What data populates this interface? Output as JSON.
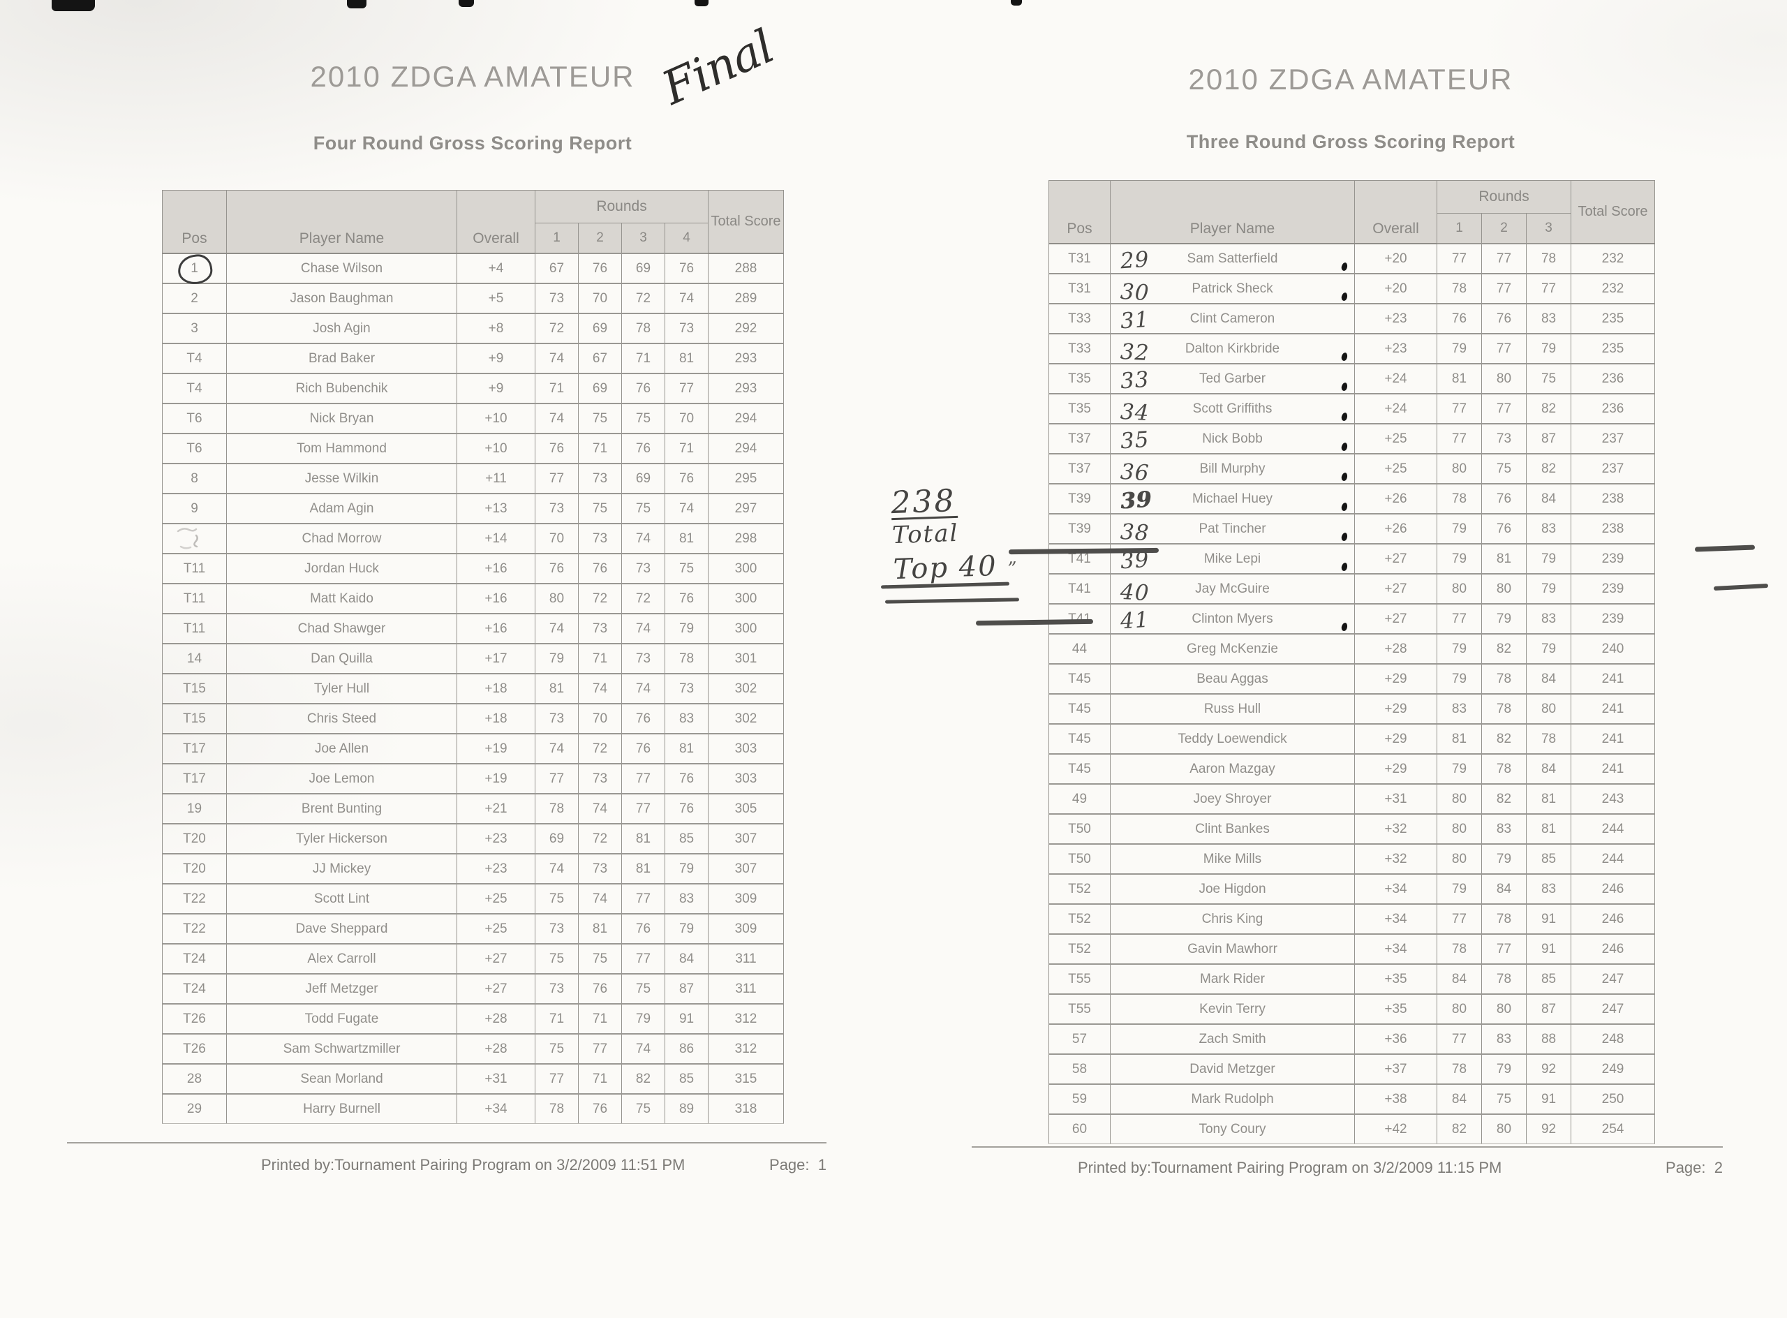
{
  "page1": {
    "title": "2010 ZDGA AMATEUR",
    "subtitle": "Four Round Gross Scoring Report",
    "handwritten_final": "Final",
    "columns": {
      "pos": "Pos",
      "player": "Player Name",
      "overall": "Overall",
      "rounds": "Rounds",
      "round_numbers": [
        "1",
        "2",
        "3",
        "4"
      ],
      "total": "Total Score"
    },
    "rows": [
      {
        "pos": "1",
        "name": "Chase Wilson",
        "overall": "+4",
        "r": [
          "67",
          "76",
          "69",
          "76"
        ],
        "total": "288",
        "circled": true
      },
      {
        "pos": "2",
        "name": "Jason Baughman",
        "overall": "+5",
        "r": [
          "73",
          "70",
          "72",
          "74"
        ],
        "total": "289"
      },
      {
        "pos": "3",
        "name": "Josh Agin",
        "overall": "+8",
        "r": [
          "72",
          "69",
          "78",
          "73"
        ],
        "total": "292"
      },
      {
        "pos": "T4",
        "name": "Brad Baker",
        "overall": "+9",
        "r": [
          "74",
          "67",
          "71",
          "81"
        ],
        "total": "293"
      },
      {
        "pos": "T4",
        "name": "Rich Bubenchik",
        "overall": "+9",
        "r": [
          "71",
          "69",
          "76",
          "77"
        ],
        "total": "293"
      },
      {
        "pos": "T6",
        "name": "Nick Bryan",
        "overall": "+10",
        "r": [
          "74",
          "75",
          "75",
          "70"
        ],
        "total": "294"
      },
      {
        "pos": "T6",
        "name": "Tom Hammond",
        "overall": "+10",
        "r": [
          "76",
          "71",
          "76",
          "71"
        ],
        "total": "294"
      },
      {
        "pos": "8",
        "name": "Jesse Wilkin",
        "overall": "+11",
        "r": [
          "77",
          "73",
          "69",
          "76"
        ],
        "total": "295"
      },
      {
        "pos": "9",
        "name": "Adam Agin",
        "overall": "+13",
        "r": [
          "73",
          "75",
          "75",
          "74"
        ],
        "total": "297"
      },
      {
        "pos": "",
        "name": "Chad Morrow",
        "overall": "+14",
        "r": [
          "70",
          "73",
          "74",
          "81"
        ],
        "total": "298",
        "smudge": true
      },
      {
        "pos": "T11",
        "name": "Jordan Huck",
        "overall": "+16",
        "r": [
          "76",
          "76",
          "73",
          "75"
        ],
        "total": "300"
      },
      {
        "pos": "T11",
        "name": "Matt Kaido",
        "overall": "+16",
        "r": [
          "80",
          "72",
          "72",
          "76"
        ],
        "total": "300"
      },
      {
        "pos": "T11",
        "name": "Chad Shawger",
        "overall": "+16",
        "r": [
          "74",
          "73",
          "74",
          "79"
        ],
        "total": "300"
      },
      {
        "pos": "14",
        "name": "Dan Quilla",
        "overall": "+17",
        "r": [
          "79",
          "71",
          "73",
          "78"
        ],
        "total": "301"
      },
      {
        "pos": "T15",
        "name": "Tyler Hull",
        "overall": "+18",
        "r": [
          "81",
          "74",
          "74",
          "73"
        ],
        "total": "302"
      },
      {
        "pos": "T15",
        "name": "Chris Steed",
        "overall": "+18",
        "r": [
          "73",
          "70",
          "76",
          "83"
        ],
        "total": "302"
      },
      {
        "pos": "T17",
        "name": "Joe Allen",
        "overall": "+19",
        "r": [
          "74",
          "72",
          "76",
          "81"
        ],
        "total": "303"
      },
      {
        "pos": "T17",
        "name": "Joe Lemon",
        "overall": "+19",
        "r": [
          "77",
          "73",
          "77",
          "76"
        ],
        "total": "303"
      },
      {
        "pos": "19",
        "name": "Brent Bunting",
        "overall": "+21",
        "r": [
          "78",
          "74",
          "77",
          "76"
        ],
        "total": "305"
      },
      {
        "pos": "T20",
        "name": "Tyler Hickerson",
        "overall": "+23",
        "r": [
          "69",
          "72",
          "81",
          "85"
        ],
        "total": "307"
      },
      {
        "pos": "T20",
        "name": "JJ Mickey",
        "overall": "+23",
        "r": [
          "74",
          "73",
          "81",
          "79"
        ],
        "total": "307"
      },
      {
        "pos": "T22",
        "name": "Scott Lint",
        "overall": "+25",
        "r": [
          "75",
          "74",
          "77",
          "83"
        ],
        "total": "309"
      },
      {
        "pos": "T22",
        "name": "Dave Sheppard",
        "overall": "+25",
        "r": [
          "73",
          "81",
          "76",
          "79"
        ],
        "total": "309"
      },
      {
        "pos": "T24",
        "name": "Alex Carroll",
        "overall": "+27",
        "r": [
          "75",
          "75",
          "77",
          "84"
        ],
        "total": "311"
      },
      {
        "pos": "T24",
        "name": "Jeff Metzger",
        "overall": "+27",
        "r": [
          "73",
          "76",
          "75",
          "87"
        ],
        "total": "311"
      },
      {
        "pos": "T26",
        "name": "Todd Fugate",
        "overall": "+28",
        "r": [
          "71",
          "71",
          "79",
          "91"
        ],
        "total": "312"
      },
      {
        "pos": "T26",
        "name": "Sam Schwartzmiller",
        "overall": "+28",
        "r": [
          "75",
          "77",
          "74",
          "86"
        ],
        "total": "312"
      },
      {
        "pos": "28",
        "name": "Sean Morland",
        "overall": "+31",
        "r": [
          "77",
          "71",
          "82",
          "85"
        ],
        "total": "315"
      },
      {
        "pos": "29",
        "name": "Harry Burnell",
        "overall": "+34",
        "r": [
          "78",
          "76",
          "75",
          "89"
        ],
        "total": "318"
      }
    ],
    "footer": {
      "printed": "Printed by:Tournament Pairing Program on 3/2/2009 11:51 PM",
      "page_label": "Page:",
      "page_number": "1"
    }
  },
  "page2": {
    "title": "2010 ZDGA AMATEUR",
    "subtitle": "Three Round Gross Scoring Report",
    "columns": {
      "pos": "Pos",
      "player": "Player Name",
      "overall": "Overall",
      "rounds": "Rounds",
      "round_numbers": [
        "1",
        "2",
        "3"
      ],
      "total": "Total Score"
    },
    "margin_note": {
      "line1": "238",
      "line2": "Total",
      "line3": "Top 40",
      "quote_marks": "”"
    },
    "rows": [
      {
        "pos": "T31",
        "name": "Sam Satterfield",
        "overall": "+20",
        "r": [
          "77",
          "77",
          "78"
        ],
        "total": "232",
        "hw": "29",
        "dot": true
      },
      {
        "pos": "T31",
        "name": "Patrick Sheck",
        "overall": "+20",
        "r": [
          "78",
          "77",
          "77"
        ],
        "total": "232",
        "hw": "30",
        "dot": true
      },
      {
        "pos": "T33",
        "name": "Clint Cameron",
        "overall": "+23",
        "r": [
          "76",
          "76",
          "83"
        ],
        "total": "235",
        "hw": "31"
      },
      {
        "pos": "T33",
        "name": "Dalton Kirkbride",
        "overall": "+23",
        "r": [
          "79",
          "77",
          "79"
        ],
        "total": "235",
        "hw": "32",
        "dot": true
      },
      {
        "pos": "T35",
        "name": "Ted Garber",
        "overall": "+24",
        "r": [
          "81",
          "80",
          "75"
        ],
        "total": "236",
        "hw": "33",
        "dot": true
      },
      {
        "pos": "T35",
        "name": "Scott Griffiths",
        "overall": "+24",
        "r": [
          "77",
          "77",
          "82"
        ],
        "total": "236",
        "hw": "34",
        "dot": true
      },
      {
        "pos": "T37",
        "name": "Nick Bobb",
        "overall": "+25",
        "r": [
          "77",
          "73",
          "87"
        ],
        "total": "237",
        "hw": "35",
        "dot": true
      },
      {
        "pos": "T37",
        "name": "Bill Murphy",
        "overall": "+25",
        "r": [
          "80",
          "75",
          "82"
        ],
        "total": "237",
        "hw": "36",
        "dot": true
      },
      {
        "pos": "T39",
        "name": "Michael Huey",
        "overall": "+26",
        "r": [
          "78",
          "76",
          "84"
        ],
        "total": "238",
        "hw": "39",
        "hw_heavy": true,
        "dot": true
      },
      {
        "pos": "T39",
        "name": "Pat Tincher",
        "overall": "+26",
        "r": [
          "79",
          "76",
          "83"
        ],
        "total": "238",
        "hw": "38",
        "dot": true
      },
      {
        "pos": "T41",
        "name": "Mike Lepi",
        "overall": "+27",
        "r": [
          "79",
          "81",
          "79"
        ],
        "total": "239",
        "hw": "39",
        "dot": true
      },
      {
        "pos": "T41",
        "name": "Jay McGuire",
        "overall": "+27",
        "r": [
          "80",
          "80",
          "79"
        ],
        "total": "239",
        "hw": "40"
      },
      {
        "pos": "T41",
        "name": "Clinton Myers",
        "overall": "+27",
        "r": [
          "77",
          "79",
          "83"
        ],
        "total": "239",
        "hw": "41",
        "dot": true
      },
      {
        "pos": "44",
        "name": "Greg McKenzie",
        "overall": "+28",
        "r": [
          "79",
          "82",
          "79"
        ],
        "total": "240"
      },
      {
        "pos": "T45",
        "name": "Beau Aggas",
        "overall": "+29",
        "r": [
          "79",
          "78",
          "84"
        ],
        "total": "241"
      },
      {
        "pos": "T45",
        "name": "Russ Hull",
        "overall": "+29",
        "r": [
          "83",
          "78",
          "80"
        ],
        "total": "241"
      },
      {
        "pos": "T45",
        "name": "Teddy Loewendick",
        "overall": "+29",
        "r": [
          "81",
          "82",
          "78"
        ],
        "total": "241"
      },
      {
        "pos": "T45",
        "name": "Aaron Mazgay",
        "overall": "+29",
        "r": [
          "79",
          "78",
          "84"
        ],
        "total": "241"
      },
      {
        "pos": "49",
        "name": "Joey Shroyer",
        "overall": "+31",
        "r": [
          "80",
          "82",
          "81"
        ],
        "total": "243"
      },
      {
        "pos": "T50",
        "name": "Clint Bankes",
        "overall": "+32",
        "r": [
          "80",
          "83",
          "81"
        ],
        "total": "244"
      },
      {
        "pos": "T50",
        "name": "Mike Mills",
        "overall": "+32",
        "r": [
          "80",
          "79",
          "85"
        ],
        "total": "244"
      },
      {
        "pos": "T52",
        "name": "Joe Higdon",
        "overall": "+34",
        "r": [
          "79",
          "84",
          "83"
        ],
        "total": "246"
      },
      {
        "pos": "T52",
        "name": "Chris King",
        "overall": "+34",
        "r": [
          "77",
          "78",
          "91"
        ],
        "total": "246"
      },
      {
        "pos": "T52",
        "name": "Gavin Mawhorr",
        "overall": "+34",
        "r": [
          "78",
          "77",
          "91"
        ],
        "total": "246"
      },
      {
        "pos": "T55",
        "name": "Mark Rider",
        "overall": "+35",
        "r": [
          "84",
          "78",
          "85"
        ],
        "total": "247"
      },
      {
        "pos": "T55",
        "name": "Kevin Terry",
        "overall": "+35",
        "r": [
          "80",
          "80",
          "87"
        ],
        "total": "247"
      },
      {
        "pos": "57",
        "name": "Zach Smith",
        "overall": "+36",
        "r": [
          "77",
          "83",
          "88"
        ],
        "total": "248"
      },
      {
        "pos": "58",
        "name": "David Metzger",
        "overall": "+37",
        "r": [
          "78",
          "79",
          "92"
        ],
        "total": "249"
      },
      {
        "pos": "59",
        "name": "Mark Rudolph",
        "overall": "+38",
        "r": [
          "84",
          "75",
          "91"
        ],
        "total": "250"
      },
      {
        "pos": "60",
        "name": "Tony Coury",
        "overall": "+42",
        "r": [
          "82",
          "80",
          "92"
        ],
        "total": "254"
      }
    ],
    "footer": {
      "printed": "Printed by:Tournament Pairing Program on 3/2/2009 11:15 PM",
      "page_label": "Page:",
      "page_number": "2"
    }
  }
}
